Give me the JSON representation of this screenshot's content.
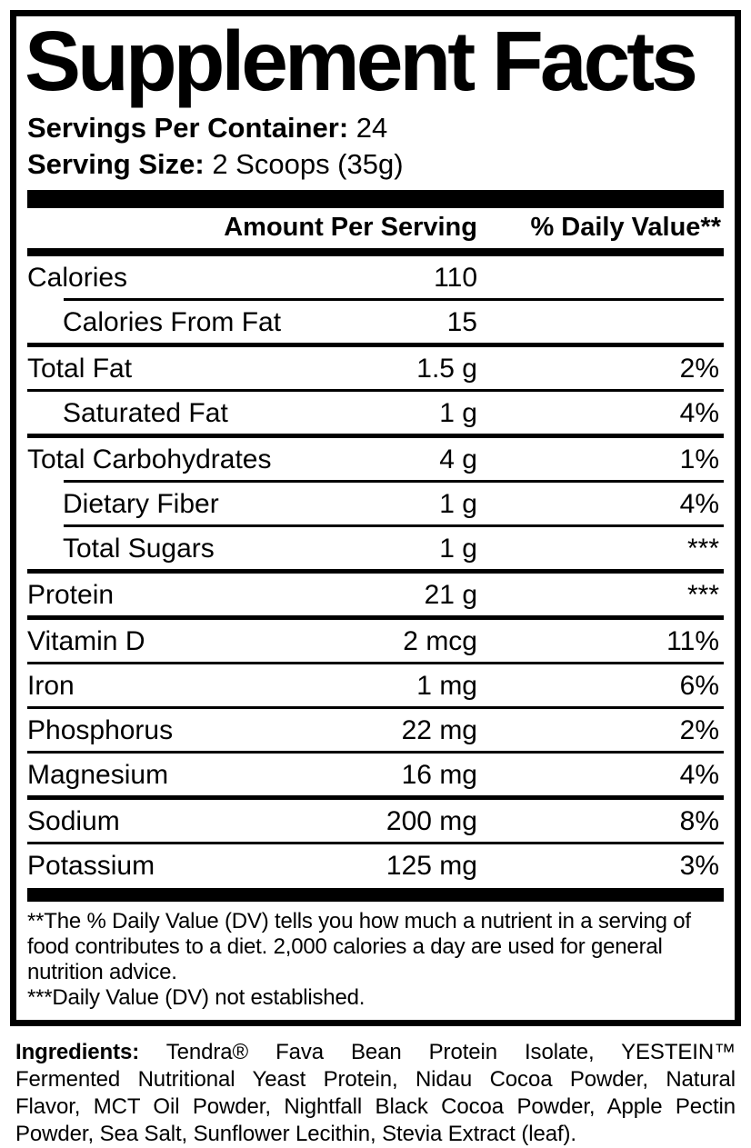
{
  "panel": {
    "title": "Supplement Facts",
    "servings_per_container_label": "Servings Per Container:",
    "servings_per_container_value": "24",
    "serving_size_label": "Serving Size:",
    "serving_size_value": "2 Scoops (35g)"
  },
  "table": {
    "amount_header": "Amount Per Serving",
    "dv_header": "% Daily Value**",
    "rows": [
      {
        "name": "Calories",
        "amount": "110",
        "dv": ""
      },
      {
        "name": "Calories From Fat",
        "amount": "15",
        "dv": ""
      },
      {
        "name": "Total Fat",
        "amount": "1.5 g",
        "dv": "2%"
      },
      {
        "name": "Saturated Fat",
        "amount": "1 g",
        "dv": "4%"
      },
      {
        "name": "Total Carbohydrates",
        "amount": "4 g",
        "dv": "1%"
      },
      {
        "name": "Dietary Fiber",
        "amount": "1 g",
        "dv": "4%"
      },
      {
        "name": "Total Sugars",
        "amount": "1 g",
        "dv": "***"
      },
      {
        "name": "Protein",
        "amount": "21 g",
        "dv": "***"
      },
      {
        "name": "Vitamin D",
        "amount": "2 mcg",
        "dv": "11%"
      },
      {
        "name": "Iron",
        "amount": "1 mg",
        "dv": "6%"
      },
      {
        "name": "Phosphorus",
        "amount": "22 mg",
        "dv": "2%"
      },
      {
        "name": "Magnesium",
        "amount": "16 mg",
        "dv": "4%"
      },
      {
        "name": "Sodium",
        "amount": "200 mg",
        "dv": "8%"
      },
      {
        "name": "Potassium",
        "amount": "125 mg",
        "dv": "3%"
      }
    ]
  },
  "footnotes": {
    "lines": [
      "**The % Daily Value (DV) tells you how much a nutrient in a serving of",
      "food contributes to a diet. 2,000 calories a day are used for general",
      "nutrition advice.",
      "***Daily Value (DV) not established."
    ]
  },
  "ingredients": {
    "label": "Ingredients:",
    "lines": [
      "Tendra® Fava Bean Protein Isolate, YESTEIN™",
      "Fermented Nutritional Yeast Protein, Nidau Cocoa Powder, Natural",
      "Flavor, MCT Oil Powder, Nightfall Black Cocoa Powder, Apple Pectin",
      "Powder, Sea Salt, Sunflower Lecithin, Stevia Extract (leaf)."
    ]
  },
  "colors": {
    "text": "#000000",
    "background": "#ffffff"
  }
}
